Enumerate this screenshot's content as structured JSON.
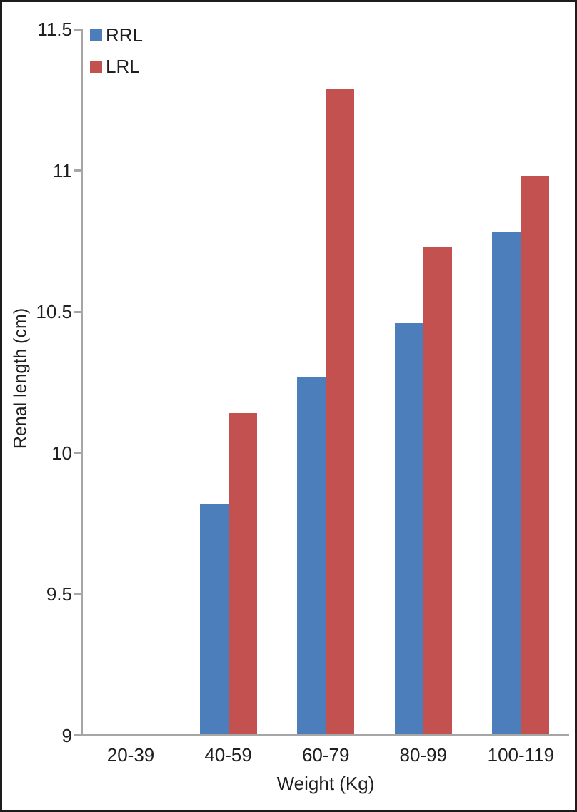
{
  "chart_data": {
    "type": "bar",
    "title": "",
    "xlabel": "Weight (Kg)",
    "ylabel": "Renal length (cm)",
    "categories": [
      "20-39",
      "40-59",
      "60-79",
      "80-99",
      "100-119"
    ],
    "series": [
      {
        "name": "RRL",
        "color": "#4C7EBC",
        "values": [
          null,
          9.82,
          10.27,
          10.46,
          10.78
        ]
      },
      {
        "name": "LRL",
        "color": "#C25150",
        "values": [
          null,
          10.14,
          11.29,
          10.73,
          10.98
        ]
      }
    ],
    "ylim": [
      9,
      11.5
    ],
    "ytick_step": 0.5,
    "grid": false,
    "legend_position": "top-left",
    "axis_color": "#A6A6A6",
    "text_color": "#1F1F1F"
  }
}
